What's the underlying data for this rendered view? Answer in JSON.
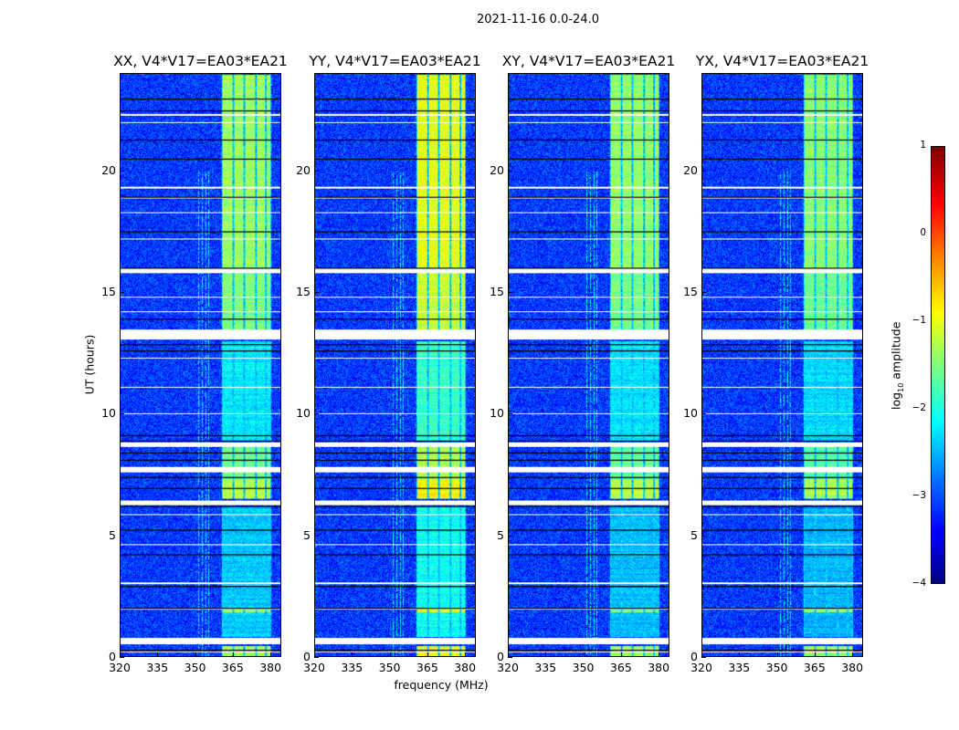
{
  "chart_data": {
    "type": "heatmap",
    "title": "2021-11-16 0.0-24.0",
    "xlabel": "frequency (MHz)",
    "ylabel": "UT (hours)",
    "xlim": [
      320,
      384.3
    ],
    "ylim": [
      0,
      24
    ],
    "xticks": [
      "320",
      "335",
      "350",
      "365",
      "380"
    ],
    "xtick_values": [
      320,
      335,
      350,
      365,
      380
    ],
    "yticks": [
      "0",
      "5",
      "10",
      "15",
      "20"
    ],
    "ytick_values": [
      0,
      5,
      10,
      15,
      20
    ],
    "panels": [
      {
        "title": "XX, V4*V17=EA03*EA21",
        "band_offset": 0
      },
      {
        "title": "YY, V4*V17=EA03*EA21",
        "band_offset": 0.35
      },
      {
        "title": "XY, V4*V17=EA03*EA21",
        "band_offset": -0.05
      },
      {
        "title": "YX, V4*V17=EA03*EA21",
        "band_offset": -0.1
      }
    ],
    "background_level": -3.1,
    "band_channels_mhz": [
      [
        360.7,
        364.8
      ],
      [
        365.6,
        369.4
      ],
      [
        370.1,
        373.8
      ],
      [
        374.6,
        378.0
      ],
      [
        378.6,
        380.3
      ]
    ],
    "band_levels_by_time": [
      [
        0,
        0.45,
        -1.3
      ],
      [
        0.8,
        1.8,
        -2.4
      ],
      [
        1.8,
        2.0,
        -1.4
      ],
      [
        2.0,
        6.2,
        -2.4
      ],
      [
        6.5,
        7.3,
        -1.2
      ],
      [
        7.3,
        8.7,
        -1.6
      ],
      [
        8.9,
        13.0,
        -2.2
      ],
      [
        13.4,
        16.0,
        -1.5
      ],
      [
        16.0,
        24,
        -1.35
      ]
    ],
    "flagged_hours": [
      [
        0.49,
        0.75
      ],
      [
        0.15,
        0.2
      ],
      [
        6.25,
        6.44
      ],
      [
        7.6,
        7.8
      ],
      [
        8.65,
        8.85
      ],
      [
        13.07,
        13.48
      ],
      [
        15.8,
        15.98
      ],
      [
        1.95,
        2.0
      ],
      [
        3.0,
        3.05
      ],
      [
        3.3,
        3.33
      ],
      [
        4.6,
        4.63
      ],
      [
        5.85,
        5.88
      ],
      [
        10.0,
        10.03
      ],
      [
        11.1,
        11.13
      ],
      [
        12.3,
        12.33
      ],
      [
        14.2,
        14.23
      ],
      [
        14.8,
        14.83
      ],
      [
        17.2,
        17.23
      ],
      [
        18.3,
        18.33
      ],
      [
        18.9,
        18.95
      ],
      [
        19.3,
        19.35
      ],
      [
        22.3,
        22.35
      ],
      [
        22.0,
        22.03
      ]
    ],
    "black_lines_hours": [
      0.28,
      1.98,
      2.9,
      4.2,
      5.2,
      6.2,
      6.95,
      7.4,
      8.1,
      8.4,
      8.9,
      9.1,
      12.6,
      12.85,
      13.9,
      16.0,
      17.5,
      18.95,
      20.5,
      21.3,
      22.5,
      23.0
    ],
    "colorbar": {
      "label": "log10 amplitude",
      "ticks": [
        "1",
        "0",
        "−1",
        "−2",
        "−3",
        "−4"
      ],
      "tick_values": [
        1,
        0,
        -1,
        -2,
        -3,
        -4
      ],
      "range": [
        -4,
        1
      ],
      "colormap": "jet"
    }
  }
}
